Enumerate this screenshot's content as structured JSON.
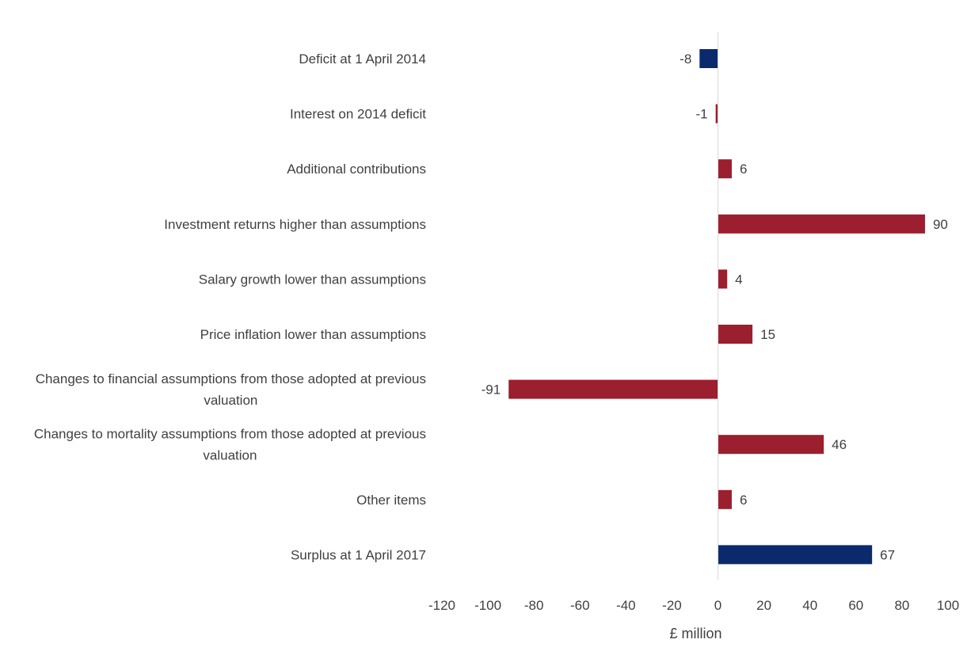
{
  "chart_data": {
    "type": "bar",
    "orientation": "horizontal",
    "title": "",
    "xlabel": "£ million",
    "ylabel": "",
    "xlim": [
      -120,
      100
    ],
    "x_ticks": [
      -120,
      -100,
      -80,
      -60,
      -40,
      -20,
      0,
      20,
      40,
      60,
      80,
      100
    ],
    "grid": false,
    "legend": "none",
    "colors": {
      "totals": "#0b2a6e",
      "changes": "#9b1f2e",
      "zero_line": "#d9d9d9"
    },
    "categories": [
      {
        "label_lines": [
          "Deficit at 1 April 2014"
        ],
        "value": -8,
        "kind": "totals"
      },
      {
        "label_lines": [
          "Interest on 2014 deficit"
        ],
        "value": -1,
        "kind": "changes"
      },
      {
        "label_lines": [
          "Additional contributions"
        ],
        "value": 6,
        "kind": "changes"
      },
      {
        "label_lines": [
          "Investment returns higher than assumptions"
        ],
        "value": 90,
        "kind": "changes"
      },
      {
        "label_lines": [
          "Salary growth lower than assumptions"
        ],
        "value": 4,
        "kind": "changes"
      },
      {
        "label_lines": [
          "Price inflation lower than assumptions"
        ],
        "value": 15,
        "kind": "changes"
      },
      {
        "label_lines": [
          "Changes to financial assumptions from those adopted at previous",
          "valuation"
        ],
        "value": -91,
        "kind": "changes"
      },
      {
        "label_lines": [
          "Changes to mortality assumptions from those adopted at previous",
          "valuation"
        ],
        "value": 46,
        "kind": "changes"
      },
      {
        "label_lines": [
          "Other items"
        ],
        "value": 6,
        "kind": "changes"
      },
      {
        "label_lines": [
          "Surplus at 1 April 2017"
        ],
        "value": 67,
        "kind": "totals"
      }
    ]
  }
}
